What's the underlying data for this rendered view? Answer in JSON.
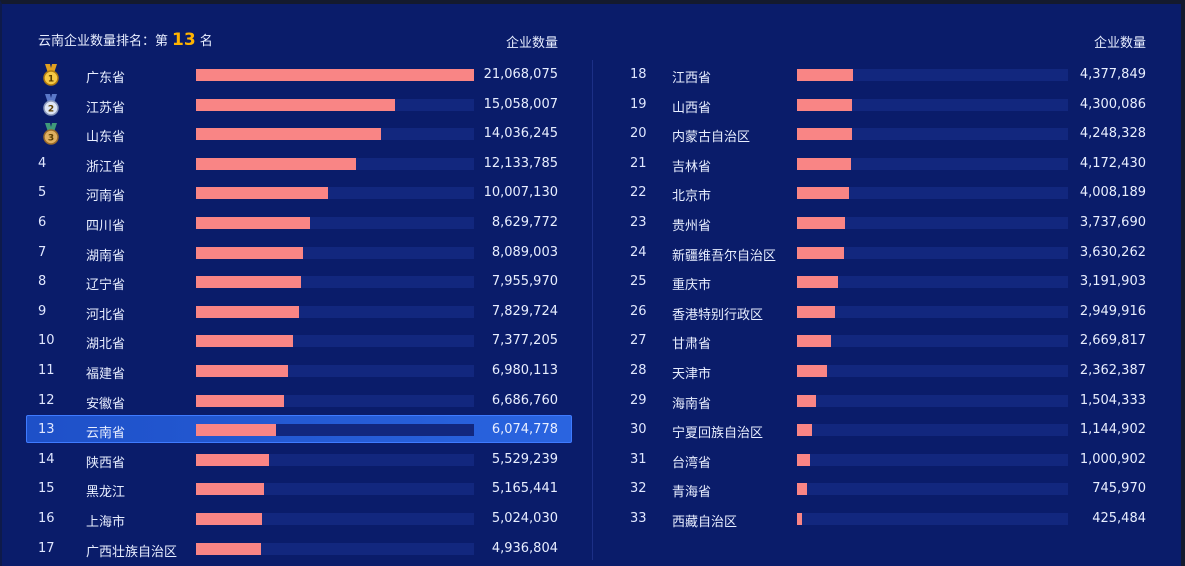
{
  "header": {
    "title_prefix": "云南企业数量排名：第",
    "rank": "13",
    "title_suffix": "名",
    "left_column_label": "企业数量",
    "right_column_label": "企业数量"
  },
  "colors": {
    "background": "#0a1c6a",
    "bar_fill": "#f98585",
    "bar_track": "#12277e",
    "highlight": "#2a64e0",
    "rank_accent": "#ffb300"
  },
  "chart_data": {
    "type": "bar",
    "orientation": "horizontal",
    "max_value": 21068075,
    "highlight_rank": "13",
    "rows": [
      {
        "rank": "1",
        "name": "广东省",
        "value": 21068075,
        "label": "21,068,075",
        "medal": "gold"
      },
      {
        "rank": "2",
        "name": "江苏省",
        "value": 15058007,
        "label": "15,058,007",
        "medal": "silver"
      },
      {
        "rank": "3",
        "name": "山东省",
        "value": 14036245,
        "label": "14,036,245",
        "medal": "bronze"
      },
      {
        "rank": "4",
        "name": "浙江省",
        "value": 12133785,
        "label": "12,133,785"
      },
      {
        "rank": "5",
        "name": "河南省",
        "value": 10007130,
        "label": "10,007,130"
      },
      {
        "rank": "6",
        "name": "四川省",
        "value": 8629772,
        "label": "8,629,772"
      },
      {
        "rank": "7",
        "name": "湖南省",
        "value": 8089003,
        "label": "8,089,003"
      },
      {
        "rank": "8",
        "name": "辽宁省",
        "value": 7955970,
        "label": "7,955,970"
      },
      {
        "rank": "9",
        "name": "河北省",
        "value": 7829724,
        "label": "7,829,724"
      },
      {
        "rank": "10",
        "name": "湖北省",
        "value": 7377205,
        "label": "7,377,205"
      },
      {
        "rank": "11",
        "name": "福建省",
        "value": 6980113,
        "label": "6,980,113"
      },
      {
        "rank": "12",
        "name": "安徽省",
        "value": 6686760,
        "label": "6,686,760"
      },
      {
        "rank": "13",
        "name": "云南省",
        "value": 6074778,
        "label": "6,074,778"
      },
      {
        "rank": "14",
        "name": "陕西省",
        "value": 5529239,
        "label": "5,529,239"
      },
      {
        "rank": "15",
        "name": "黑龙江",
        "value": 5165441,
        "label": "5,165,441"
      },
      {
        "rank": "16",
        "name": "上海市",
        "value": 5024030,
        "label": "5,024,030"
      },
      {
        "rank": "17",
        "name": "广西壮族自治区",
        "value": 4936804,
        "label": "4,936,804"
      },
      {
        "rank": "18",
        "name": "江西省",
        "value": 4377849,
        "label": "4,377,849"
      },
      {
        "rank": "19",
        "name": "山西省",
        "value": 4300086,
        "label": "4,300,086"
      },
      {
        "rank": "20",
        "name": "内蒙古自治区",
        "value": 4248328,
        "label": "4,248,328"
      },
      {
        "rank": "21",
        "name": "吉林省",
        "value": 4172430,
        "label": "4,172,430"
      },
      {
        "rank": "22",
        "name": "北京市",
        "value": 4008189,
        "label": "4,008,189"
      },
      {
        "rank": "23",
        "name": "贵州省",
        "value": 3737690,
        "label": "3,737,690"
      },
      {
        "rank": "24",
        "name": "新疆维吾尔自治区",
        "value": 3630262,
        "label": "3,630,262"
      },
      {
        "rank": "25",
        "name": "重庆市",
        "value": 3191903,
        "label": "3,191,903"
      },
      {
        "rank": "26",
        "name": "香港特别行政区",
        "value": 2949916,
        "label": "2,949,916"
      },
      {
        "rank": "27",
        "name": "甘肃省",
        "value": 2669817,
        "label": "2,669,817"
      },
      {
        "rank": "28",
        "name": "天津市",
        "value": 2362387,
        "label": "2,362,387"
      },
      {
        "rank": "29",
        "name": "海南省",
        "value": 1504333,
        "label": "1,504,333"
      },
      {
        "rank": "30",
        "name": "宁夏回族自治区",
        "value": 1144902,
        "label": "1,144,902"
      },
      {
        "rank": "31",
        "name": "台湾省",
        "value": 1000902,
        "label": "1,000,902"
      },
      {
        "rank": "32",
        "name": "青海省",
        "value": 745970,
        "label": "745,970"
      },
      {
        "rank": "33",
        "name": "西藏自治区",
        "value": 425484,
        "label": "425,484"
      }
    ]
  }
}
